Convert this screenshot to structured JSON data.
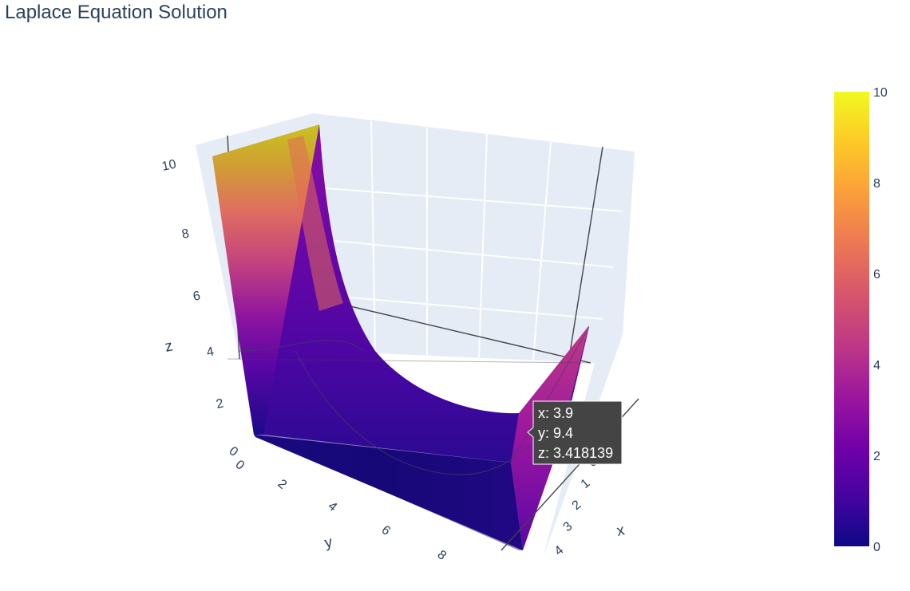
{
  "chart_data": {
    "type": "surface",
    "title": "Laplace Equation Solution",
    "xlabel": "x",
    "ylabel": "y",
    "zlabel": "z",
    "x_ticks": [
      0,
      1,
      2,
      3,
      4
    ],
    "y_ticks": [
      0,
      2,
      4,
      6,
      8
    ],
    "z_ticks": [
      0,
      2,
      4,
      6,
      8,
      10
    ],
    "xlim": [
      0,
      4.5
    ],
    "ylim": [
      0,
      10
    ],
    "zlim": [
      0,
      10
    ],
    "colorscale": "plasma",
    "colorbar": {
      "range": [
        0,
        10
      ],
      "ticks": [
        0,
        2,
        4,
        6,
        8,
        10
      ]
    },
    "surface_description": [
      {
        "x": 0,
        "y": 0,
        "z": 10
      },
      {
        "x": 4.5,
        "y": 0,
        "z": 10
      },
      {
        "x": 0,
        "y": 10,
        "z": 4
      },
      {
        "x": 4.5,
        "y": 10,
        "z": 4
      }
    ],
    "hover": {
      "x_label": "x: 3.9",
      "y_label": "y: 9.4",
      "z_label": "z: 3.418139"
    }
  }
}
